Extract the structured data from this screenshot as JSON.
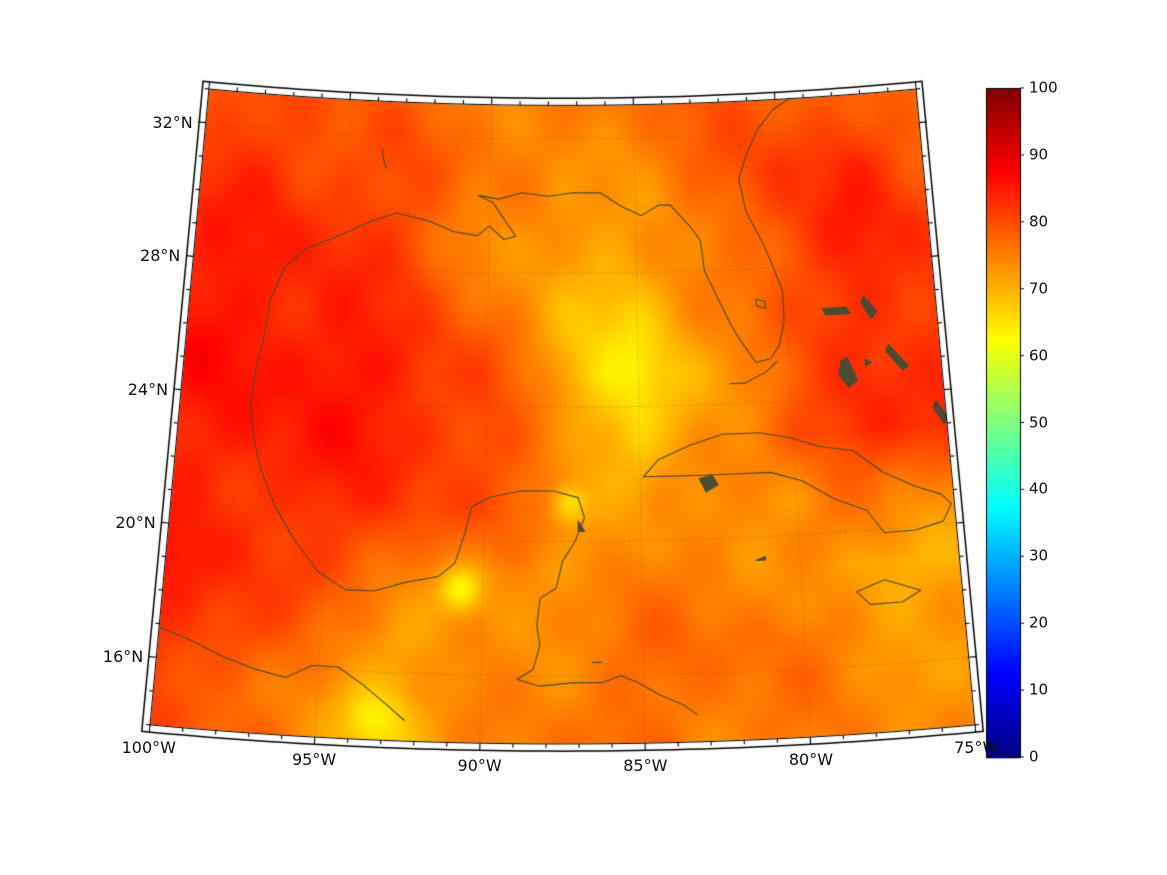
{
  "figure": {
    "background": "#ffffff",
    "colors": {
      "coastline": "#4b4b34",
      "graticule": "rgba(112,96,70,0.85)",
      "frame": "#000000",
      "label": "#111111"
    },
    "axes": {
      "x_ticks": [
        {
          "lon": -100,
          "label": "100°W"
        },
        {
          "lon": -95,
          "label": "95°W"
        },
        {
          "lon": -90,
          "label": "90°W"
        },
        {
          "lon": -85,
          "label": "85°W"
        },
        {
          "lon": -80,
          "label": "80°W"
        },
        {
          "lon": -75,
          "label": "75°W"
        }
      ],
      "y_ticks": [
        {
          "lat": 16,
          "label": "16°N"
        },
        {
          "lat": 20,
          "label": "20°N"
        },
        {
          "lat": 24,
          "label": "24°N"
        },
        {
          "lat": 28,
          "label": "28°N"
        },
        {
          "lat": 32,
          "label": "32°N"
        }
      ],
      "minor_step_lon": 1,
      "minor_step_lat": 1
    },
    "colorbar": {
      "min": 0,
      "max": 100,
      "ticks": [
        0,
        10,
        20,
        30,
        40,
        50,
        60,
        70,
        80,
        90,
        100
      ],
      "colormap": "jet"
    }
  },
  "chart_data": {
    "type": "heatmap",
    "colormap": "jet",
    "value_range": [
      0,
      100
    ],
    "projection": {
      "type": "lambert-conformal-conic",
      "center_lon": -87.5,
      "std_parallels": [
        20,
        30
      ],
      "lon_range": [
        -100,
        -75
      ],
      "lat_range": [
        14,
        33
      ]
    },
    "graticule": {
      "lons": [
        -95,
        -90,
        -85,
        -80
      ],
      "lats": [
        16,
        20,
        24,
        28,
        32
      ]
    },
    "lons": [
      -100,
      -97.5,
      -95,
      -92.5,
      -90,
      -87.5,
      -85,
      -82.5,
      -80,
      -77.5,
      -75
    ],
    "lats": [
      33,
      31,
      29,
      27,
      25,
      23,
      21,
      19,
      17,
      15
    ],
    "values": [
      [
        80,
        80,
        79,
        77,
        76,
        75,
        76,
        78,
        80,
        78,
        77
      ],
      [
        82,
        82,
        81,
        79,
        76,
        73,
        75,
        77,
        82,
        83,
        80
      ],
      [
        84,
        84,
        83,
        80,
        74,
        71,
        73,
        75,
        81,
        84,
        82
      ],
      [
        85,
        85,
        84,
        81,
        77,
        70,
        68,
        74,
        80,
        83,
        83
      ],
      [
        85,
        86,
        86,
        84,
        80,
        70,
        64,
        72,
        78,
        82,
        84
      ],
      [
        84,
        85,
        85,
        84,
        81,
        74,
        66,
        74,
        80,
        83,
        84
      ],
      [
        83,
        84,
        83,
        82,
        79,
        76,
        72,
        74,
        72,
        78,
        74
      ],
      [
        85,
        83,
        80,
        77,
        72,
        73,
        75,
        76,
        73,
        70,
        70
      ],
      [
        83,
        82,
        75,
        72,
        74,
        75,
        76,
        77,
        76,
        74,
        72
      ],
      [
        80,
        78,
        73,
        70,
        74,
        76,
        77,
        76,
        75,
        74,
        73
      ]
    ],
    "hotspots": [
      {
        "lon": -90.7,
        "lat": 18.5,
        "delta": -10,
        "r": 0.45
      },
      {
        "lon": -87.3,
        "lat": 21.1,
        "delta": -9,
        "r": 0.4
      },
      {
        "lon": -93.3,
        "lat": 14.6,
        "delta": -6,
        "r": 0.6
      }
    ],
    "coastlines": [
      {
        "name": "us-gulf-atlantic-coast",
        "close": false,
        "fill": false,
        "pts": [
          [
            -97.4,
            25.9
          ],
          [
            -97.3,
            26.9
          ],
          [
            -96.9,
            27.9
          ],
          [
            -96.2,
            28.5
          ],
          [
            -95.2,
            28.9
          ],
          [
            -94.1,
            29.4
          ],
          [
            -93.2,
            29.7
          ],
          [
            -92.1,
            29.5
          ],
          [
            -91.2,
            29.2
          ],
          [
            -90.4,
            29.1
          ],
          [
            -90.0,
            29.4
          ],
          [
            -89.5,
            29.0
          ],
          [
            -89.1,
            29.1
          ],
          [
            -89.5,
            29.6
          ],
          [
            -89.9,
            30.1
          ],
          [
            -90.4,
            30.3
          ],
          [
            -89.7,
            30.2
          ],
          [
            -88.9,
            30.4
          ],
          [
            -88.0,
            30.3
          ],
          [
            -87.2,
            30.4
          ],
          [
            -86.2,
            30.4
          ],
          [
            -85.5,
            30.0
          ],
          [
            -84.8,
            29.7
          ],
          [
            -84.2,
            30.0
          ],
          [
            -83.8,
            30.0
          ],
          [
            -83.1,
            29.3
          ],
          [
            -82.8,
            28.9
          ],
          [
            -82.7,
            28.0
          ],
          [
            -82.5,
            27.6
          ],
          [
            -81.9,
            26.4
          ],
          [
            -81.6,
            25.9
          ],
          [
            -81.1,
            25.2
          ],
          [
            -80.6,
            25.3
          ],
          [
            -80.3,
            25.7
          ],
          [
            -80.1,
            26.4
          ],
          [
            -80.1,
            27.3
          ],
          [
            -80.4,
            28.1
          ],
          [
            -80.7,
            28.8
          ],
          [
            -81.2,
            29.7
          ],
          [
            -81.4,
            30.7
          ],
          [
            -81.1,
            31.4
          ],
          [
            -80.7,
            32.1
          ],
          [
            -80.1,
            32.7
          ],
          [
            -79.3,
            33.1
          ]
        ]
      },
      {
        "name": "mexico-centam-coast",
        "close": false,
        "fill": false,
        "pts": [
          [
            -97.4,
            25.9
          ],
          [
            -97.6,
            24.9
          ],
          [
            -97.7,
            23.8
          ],
          [
            -97.5,
            22.7
          ],
          [
            -97.2,
            21.8
          ],
          [
            -96.7,
            20.8
          ],
          [
            -96.0,
            19.8
          ],
          [
            -95.2,
            18.9
          ],
          [
            -94.3,
            18.4
          ],
          [
            -93.4,
            18.4
          ],
          [
            -92.4,
            18.7
          ],
          [
            -91.4,
            18.9
          ],
          [
            -90.9,
            19.3
          ],
          [
            -90.6,
            20.2
          ],
          [
            -90.4,
            21.0
          ],
          [
            -89.8,
            21.3
          ],
          [
            -88.8,
            21.5
          ],
          [
            -87.8,
            21.5
          ],
          [
            -87.0,
            21.3
          ],
          [
            -86.8,
            20.7
          ],
          [
            -87.1,
            20.0
          ],
          [
            -87.5,
            19.4
          ],
          [
            -87.7,
            18.6
          ],
          [
            -88.2,
            18.3
          ],
          [
            -88.3,
            17.5
          ],
          [
            -88.2,
            16.9
          ],
          [
            -88.4,
            16.2
          ],
          [
            -88.9,
            15.9
          ],
          [
            -88.2,
            15.7
          ],
          [
            -87.2,
            15.8
          ],
          [
            -86.3,
            15.8
          ],
          [
            -85.7,
            16.0
          ],
          [
            -85.2,
            15.8
          ],
          [
            -84.5,
            15.4
          ],
          [
            -83.8,
            15.1
          ],
          [
            -83.4,
            14.8
          ]
        ]
      },
      {
        "name": "pacific-coast",
        "close": false,
        "fill": false,
        "pts": [
          [
            -100.0,
            16.9
          ],
          [
            -99.0,
            16.6
          ],
          [
            -98.0,
            16.2
          ],
          [
            -97.0,
            15.9
          ],
          [
            -96.0,
            15.7
          ],
          [
            -95.2,
            16.1
          ],
          [
            -94.4,
            16.1
          ],
          [
            -93.6,
            15.6
          ],
          [
            -92.8,
            15.0
          ],
          [
            -92.3,
            14.6
          ]
        ]
      },
      {
        "name": "cuba",
        "close": true,
        "fill": false,
        "pts": [
          [
            -84.9,
            21.9
          ],
          [
            -84.4,
            22.4
          ],
          [
            -83.4,
            22.8
          ],
          [
            -82.3,
            23.1
          ],
          [
            -81.1,
            23.1
          ],
          [
            -80.1,
            22.9
          ],
          [
            -79.2,
            22.6
          ],
          [
            -78.1,
            22.4
          ],
          [
            -77.2,
            21.7
          ],
          [
            -76.2,
            21.2
          ],
          [
            -75.4,
            20.9
          ],
          [
            -75.1,
            20.6
          ],
          [
            -75.4,
            20.1
          ],
          [
            -76.3,
            19.9
          ],
          [
            -77.3,
            19.9
          ],
          [
            -77.8,
            20.6
          ],
          [
            -78.8,
            21.0
          ],
          [
            -79.8,
            21.6
          ],
          [
            -80.8,
            21.9
          ],
          [
            -82.0,
            21.9
          ],
          [
            -83.0,
            21.9
          ],
          [
            -84.0,
            21.9
          ]
        ]
      },
      {
        "name": "isla-juventud",
        "close": true,
        "fill": true,
        "pts": [
          [
            -83.1,
            21.8
          ],
          [
            -82.7,
            21.9
          ],
          [
            -82.5,
            21.6
          ],
          [
            -82.9,
            21.4
          ]
        ]
      },
      {
        "name": "jamaica",
        "close": true,
        "fill": false,
        "pts": [
          [
            -78.3,
            18.2
          ],
          [
            -77.4,
            18.5
          ],
          [
            -76.3,
            18.1
          ],
          [
            -76.9,
            17.8
          ],
          [
            -77.9,
            17.8
          ]
        ]
      },
      {
        "name": "grand-bahama",
        "close": true,
        "fill": true,
        "pts": [
          [
            -78.8,
            26.7
          ],
          [
            -78.0,
            26.7
          ],
          [
            -77.9,
            26.5
          ],
          [
            -78.7,
            26.5
          ]
        ]
      },
      {
        "name": "abaco",
        "close": true,
        "fill": true,
        "pts": [
          [
            -77.4,
            27.0
          ],
          [
            -77.0,
            26.5
          ],
          [
            -77.2,
            26.3
          ],
          [
            -77.5,
            26.8
          ]
        ]
      },
      {
        "name": "andros",
        "close": true,
        "fill": true,
        "pts": [
          [
            -78.1,
            25.2
          ],
          [
            -77.8,
            24.5
          ],
          [
            -78.1,
            24.3
          ],
          [
            -78.4,
            24.7
          ],
          [
            -78.3,
            25.1
          ]
        ]
      },
      {
        "name": "eleuthera",
        "close": true,
        "fill": true,
        "pts": [
          [
            -76.7,
            25.5
          ],
          [
            -76.1,
            24.8
          ],
          [
            -76.3,
            24.7
          ],
          [
            -76.8,
            25.3
          ]
        ]
      },
      {
        "name": "long-island-bahamas",
        "close": true,
        "fill": true,
        "pts": [
          [
            -75.3,
            23.7
          ],
          [
            -74.9,
            23.1
          ],
          [
            -75.1,
            23.0
          ],
          [
            -75.4,
            23.5
          ]
        ]
      },
      {
        "name": "new-providence",
        "close": true,
        "fill": true,
        "pts": [
          [
            -77.5,
            25.1
          ],
          [
            -77.3,
            25.0
          ],
          [
            -77.5,
            24.9
          ]
        ]
      },
      {
        "name": "florida-keys",
        "close": false,
        "fill": false,
        "pts": [
          [
            -80.4,
            25.2
          ],
          [
            -80.8,
            24.9
          ],
          [
            -81.5,
            24.6
          ],
          [
            -82.0,
            24.6
          ]
        ]
      },
      {
        "name": "cozumel",
        "close": true,
        "fill": true,
        "pts": [
          [
            -87.0,
            20.6
          ],
          [
            -86.8,
            20.3
          ],
          [
            -87.0,
            20.3
          ]
        ]
      },
      {
        "name": "grand-cayman",
        "close": true,
        "fill": true,
        "pts": [
          [
            -81.4,
            19.3
          ],
          [
            -81.1,
            19.4
          ],
          [
            -81.1,
            19.3
          ]
        ]
      },
      {
        "name": "lake-okeechobee",
        "close": true,
        "fill": false,
        "pts": [
          [
            -81.0,
            27.1
          ],
          [
            -80.7,
            27.0
          ],
          [
            -80.7,
            26.8
          ],
          [
            -81.0,
            26.9
          ]
        ]
      },
      {
        "name": "toledo-bend",
        "close": false,
        "fill": false,
        "pts": [
          [
            -93.8,
            31.6
          ],
          [
            -93.7,
            31.2
          ],
          [
            -93.6,
            31.0
          ]
        ]
      },
      {
        "name": "roatan",
        "close": false,
        "fill": false,
        "pts": [
          [
            -86.6,
            16.4
          ],
          [
            -86.3,
            16.4
          ]
        ]
      }
    ]
  }
}
